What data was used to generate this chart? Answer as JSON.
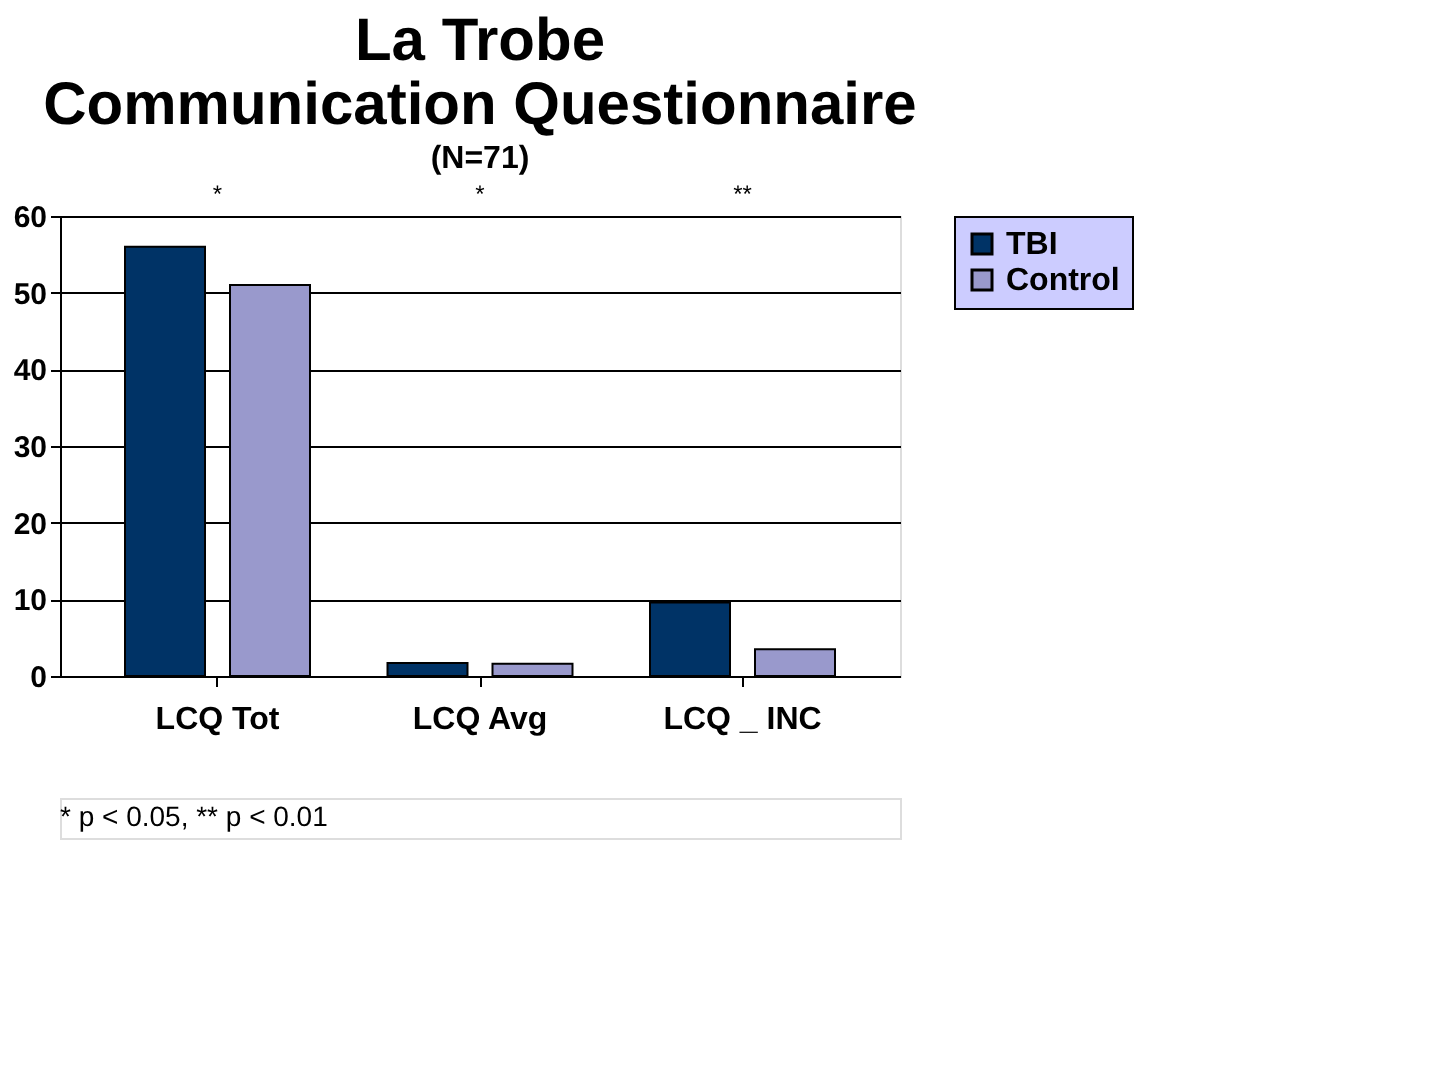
{
  "chart_data": {
    "type": "bar",
    "title": "La Trobe Communication Questionnaire",
    "subtitle": "(N=71)",
    "categories": [
      "LCQ Tot",
      "LCQ Avg",
      "LCQ _ INC"
    ],
    "series": [
      {
        "name": "TBI",
        "color": "#003366",
        "values": [
          56,
          1.7,
          9.6
        ]
      },
      {
        "name": "Control",
        "color": "#9999cc",
        "values": [
          51,
          1.6,
          3.5
        ]
      }
    ],
    "ylim": [
      0,
      60
    ],
    "yticks": [
      0,
      10,
      20,
      30,
      40,
      50,
      60
    ],
    "grid": "y",
    "legend": "right",
    "annotations": [
      "*",
      "*",
      "**",
      "* p < 0.05, ** p < 0.01"
    ]
  }
}
